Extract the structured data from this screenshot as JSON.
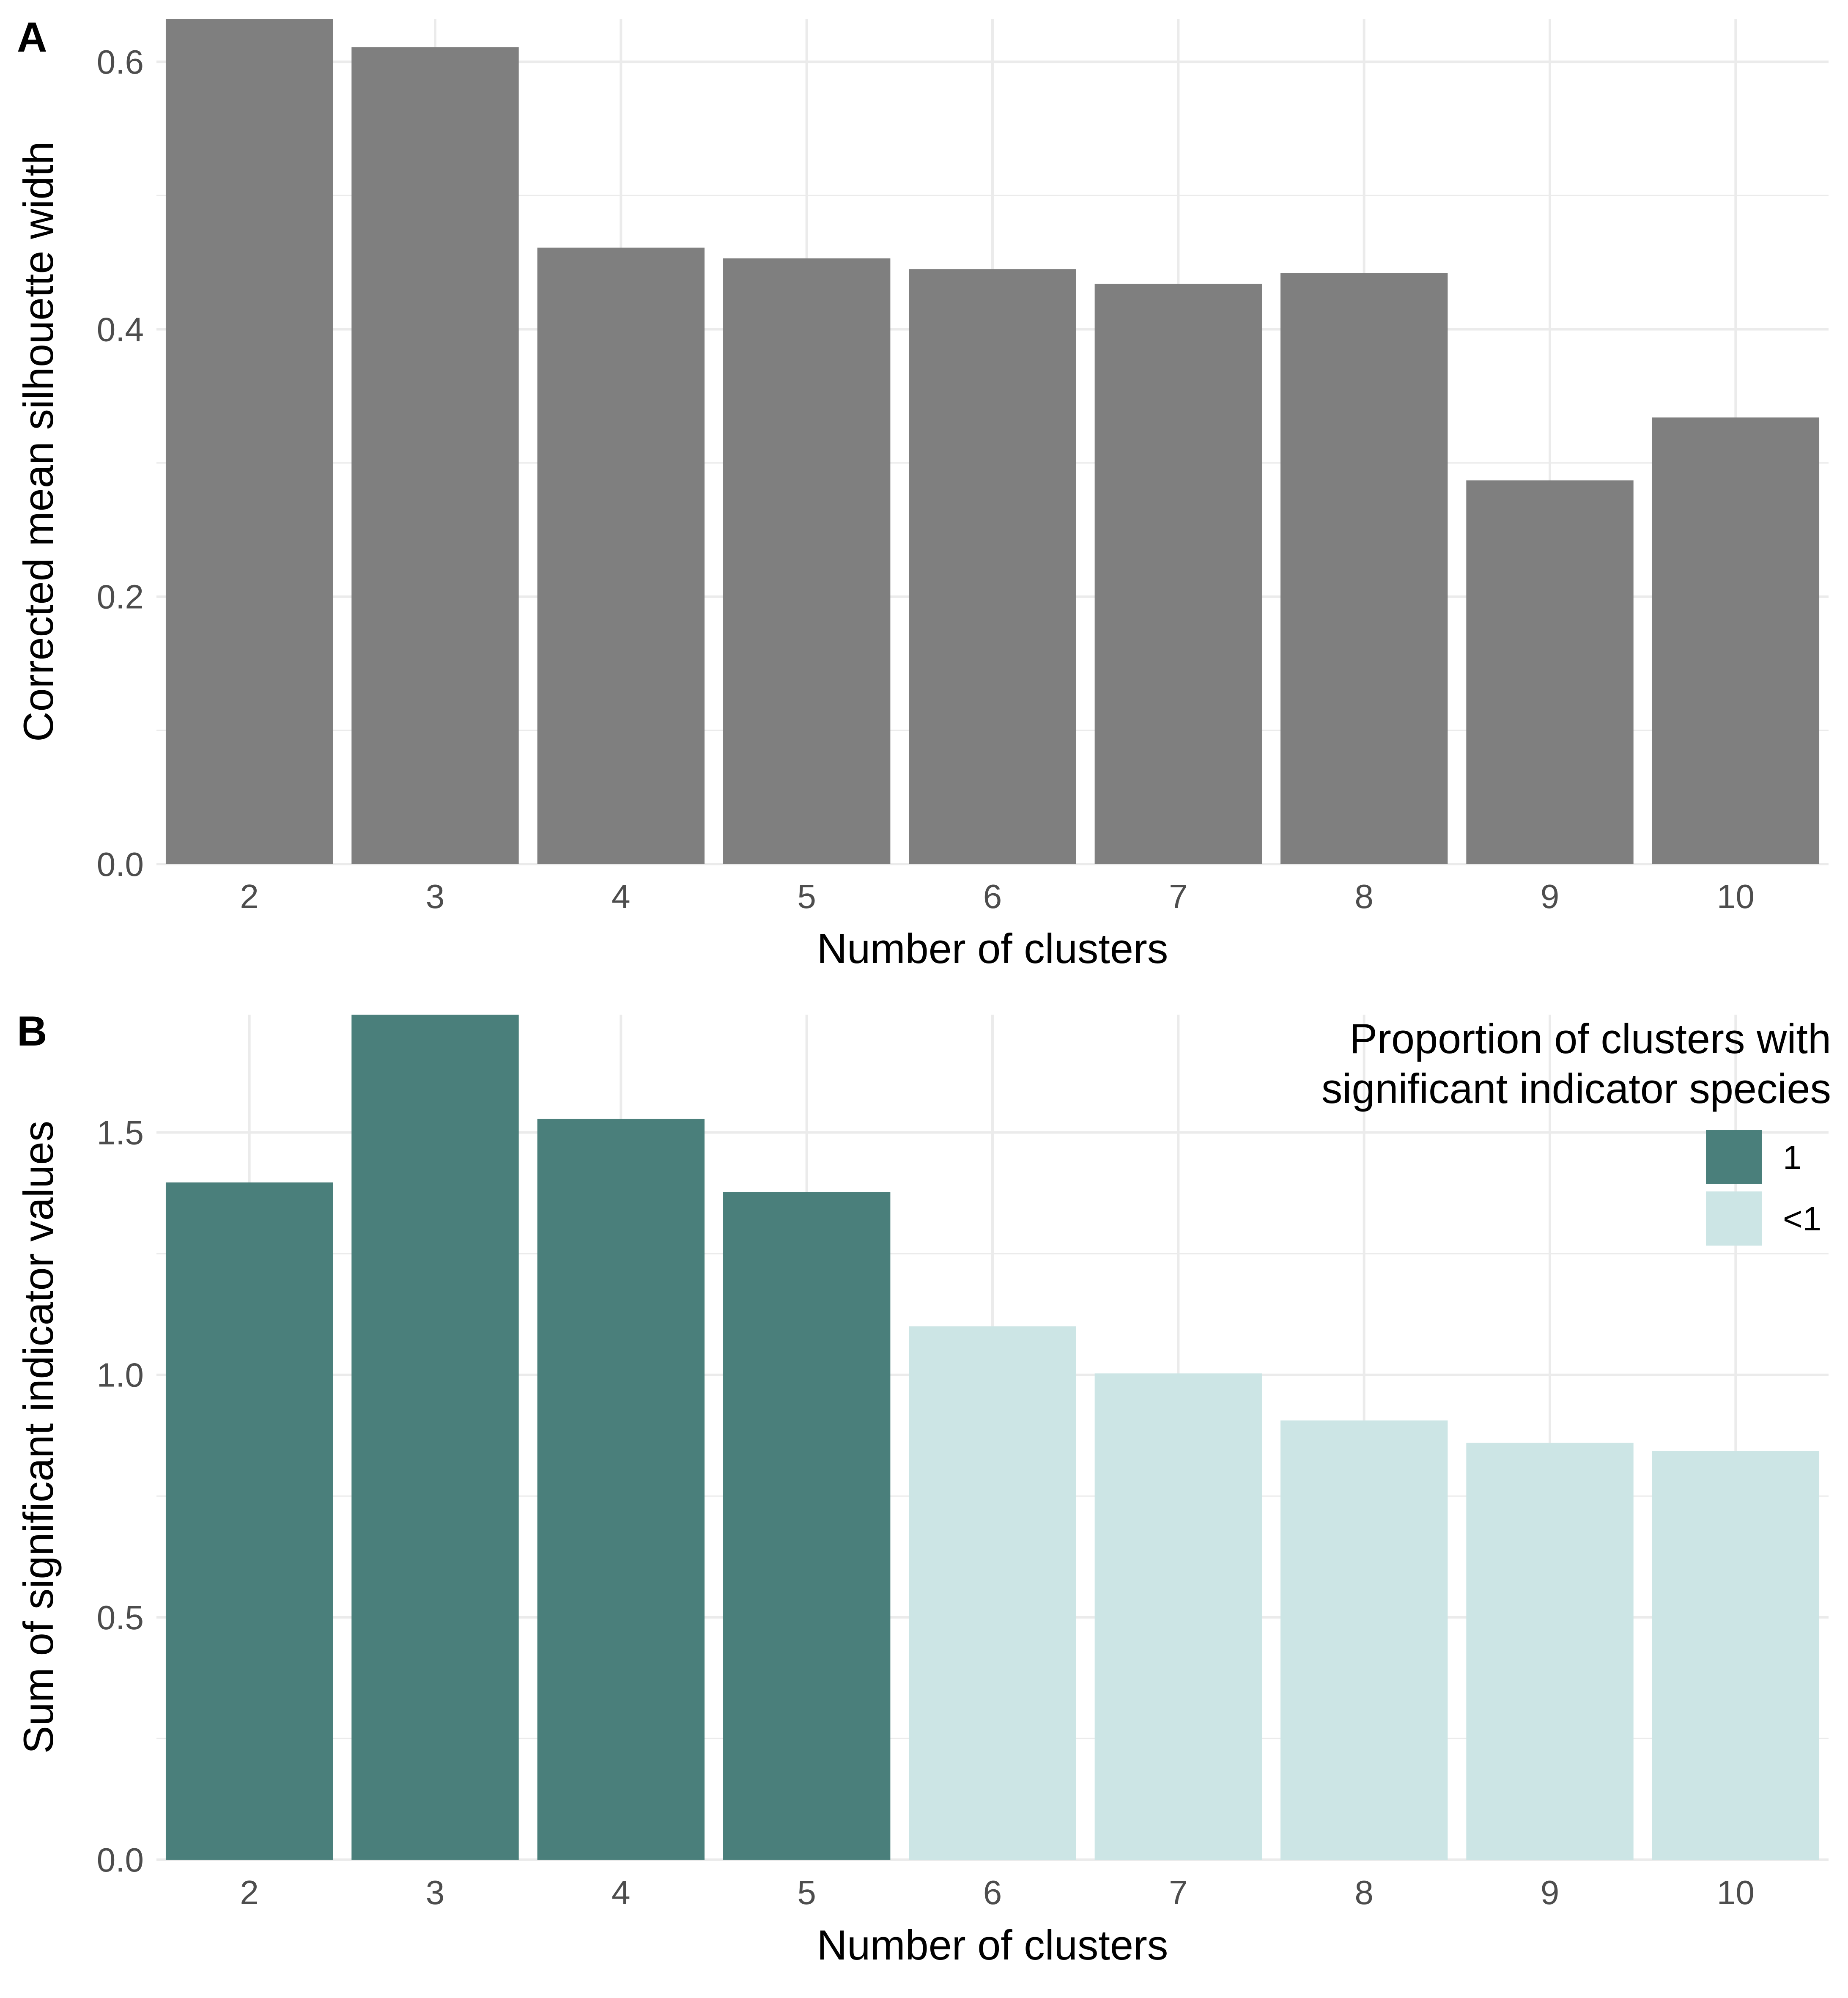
{
  "chart_data": [
    {
      "type": "bar",
      "tag": "A",
      "xlabel": "Number of clusters",
      "ylabel": "Corrected mean silhouette width",
      "categories": [
        "2",
        "3",
        "4",
        "5",
        "6",
        "7",
        "8",
        "9",
        "10"
      ],
      "values": [
        0.632,
        0.611,
        0.461,
        0.453,
        0.445,
        0.434,
        0.442,
        0.287,
        0.334
      ],
      "ylim": [
        0,
        0.632
      ],
      "yticks": [
        0.0,
        0.2,
        0.4,
        0.6
      ],
      "ytick_labels": [
        "0.0",
        "0.2",
        "0.4",
        "0.6"
      ],
      "bar_color": "#7f7f7f",
      "grid": true
    },
    {
      "type": "bar",
      "tag": "B",
      "xlabel": "Number of clusters",
      "ylabel": "Sum of significant indicator values",
      "categories": [
        "2",
        "3",
        "4",
        "5",
        "6",
        "7",
        "8",
        "9",
        "10"
      ],
      "values": [
        1.397,
        1.743,
        1.528,
        1.377,
        1.1,
        1.003,
        0.906,
        0.86,
        0.843
      ],
      "groups": [
        "1",
        "1",
        "1",
        "1",
        "<1",
        "<1",
        "<1",
        "<1",
        "<1"
      ],
      "ylim": [
        0,
        1.743
      ],
      "yticks": [
        0.0,
        0.5,
        1.0,
        1.5
      ],
      "ytick_labels": [
        "0.0",
        "0.5",
        "1.0",
        "1.5"
      ],
      "grid": true,
      "legend": {
        "title_lines": [
          "Proportion of clusters with",
          "significant indicator species"
        ],
        "position": "top-right",
        "items": [
          {
            "label": "1",
            "color": "#4a7f7b"
          },
          {
            "label": "<1",
            "color": "#cce5e5"
          }
        ]
      }
    }
  ]
}
